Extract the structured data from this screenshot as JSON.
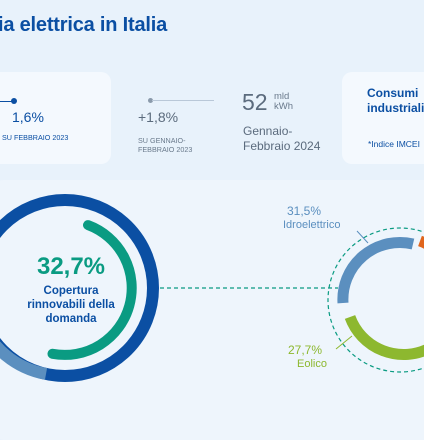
{
  "header": {
    "title": "ia elettrica in Italia"
  },
  "stats": {
    "card1": {
      "value": "1,6%",
      "period": "SU FEBBRAIO 2023"
    },
    "card2": {
      "value": "+1,8%",
      "period_line1": "SU GENNAIO-",
      "period_line2": "FEBBRAIO 2023"
    },
    "card3": {
      "value": "52",
      "unit_line1": "mld",
      "unit_line2": "kWh",
      "period_line1": "Gennaio-",
      "period_line2": "Febbraio 2024"
    },
    "card4": {
      "title_line1": "Consumi",
      "title_line2": "industriali",
      "note": "*Indice IMCEI"
    }
  },
  "main": {
    "coverage_value": "32,7%",
    "coverage_label_line1": "Copertura",
    "coverage_label_line2": "rinnovabili della",
    "coverage_label_line3": "domanda",
    "coverage_fraction": 0.327
  },
  "sources": {
    "hydro": {
      "value": "31,5%",
      "label": "Idroelettrico"
    },
    "wind": {
      "value": "27,7%",
      "label": "Eolico"
    }
  },
  "colors": {
    "primary_blue": "#0b4fa3",
    "teal": "#0a9b82",
    "hydro_blue": "#5b8fbf",
    "wind_green": "#8db82f",
    "orange": "#e0651c"
  }
}
